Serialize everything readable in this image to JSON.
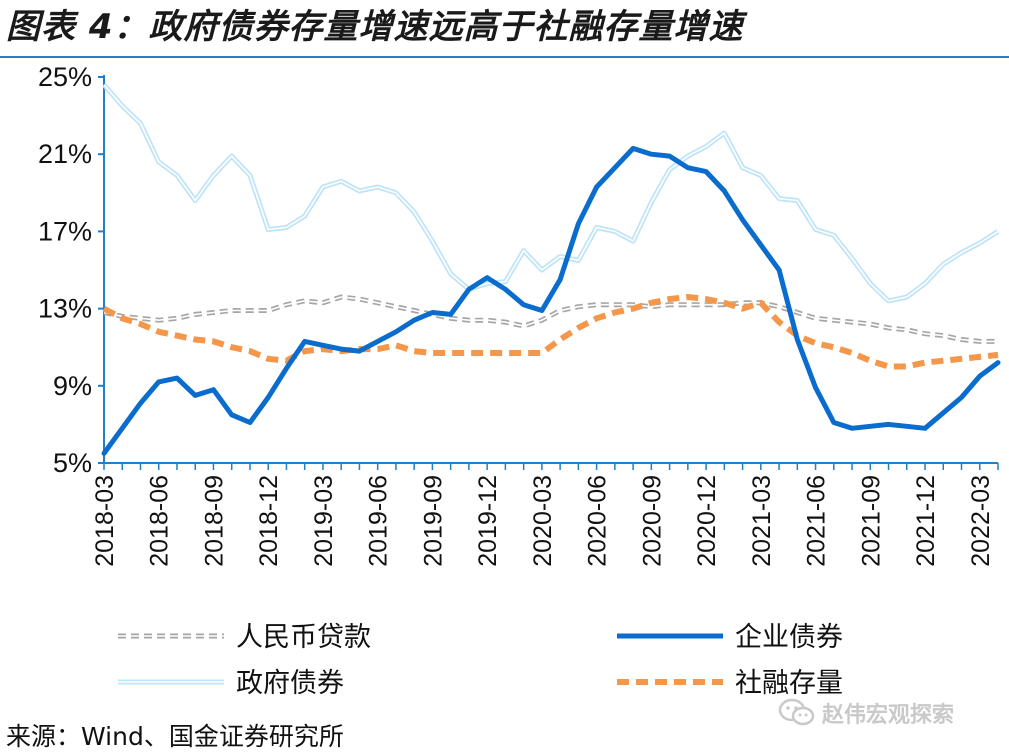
{
  "title": "图表 4：政府债券存量增速远高于社融存量增速",
  "source": "来源：Wind、国金证券研究所",
  "watermark": {
    "text": "赵伟宏观探索",
    "icon": "wechat-icon"
  },
  "colors": {
    "rmb_loans": "#a6a6a6",
    "corporate_bonds": "#0a6ccd",
    "government_bonds": "#bfe3f7",
    "social_financing": "#f4974a",
    "axis": "#1f7fc9",
    "title_rule": "#1f7fc9"
  },
  "chart_data": {
    "type": "line",
    "title": "政府债券存量增速远高于社融存量增速",
    "xlabel": "",
    "ylabel": "",
    "ylim": [
      5,
      25
    ],
    "yticks": [
      5,
      9,
      13,
      17,
      21,
      25
    ],
    "ytick_labels": [
      "5%",
      "9%",
      "13%",
      "17%",
      "21%",
      "25%"
    ],
    "x_tick_labels": [
      "2018-03",
      "2018-06",
      "2018-09",
      "2018-12",
      "2019-03",
      "2019-06",
      "2019-09",
      "2019-12",
      "2020-03",
      "2020-06",
      "2020-09",
      "2020-12",
      "2021-03",
      "2021-06",
      "2021-09",
      "2021-12",
      "2022-03"
    ],
    "x": [
      "2018-03",
      "2018-04",
      "2018-05",
      "2018-06",
      "2018-07",
      "2018-08",
      "2018-09",
      "2018-10",
      "2018-11",
      "2018-12",
      "2019-01",
      "2019-02",
      "2019-03",
      "2019-04",
      "2019-05",
      "2019-06",
      "2019-07",
      "2019-08",
      "2019-09",
      "2019-10",
      "2019-11",
      "2019-12",
      "2020-01",
      "2020-02",
      "2020-03",
      "2020-04",
      "2020-05",
      "2020-06",
      "2020-07",
      "2020-08",
      "2020-09",
      "2020-10",
      "2020-11",
      "2020-12",
      "2021-01",
      "2021-02",
      "2021-03",
      "2021-04",
      "2021-05",
      "2021-06",
      "2021-07",
      "2021-08",
      "2021-09",
      "2021-10",
      "2021-11",
      "2021-12",
      "2022-01",
      "2022-02",
      "2022-03",
      "2022-04"
    ],
    "legend_position": "bottom",
    "series": [
      {
        "name": "人民币贷款",
        "key": "rmb_loans",
        "style": "dashed",
        "width": 4,
        "values": [
          12.8,
          12.6,
          12.5,
          12.4,
          12.5,
          12.7,
          12.8,
          12.9,
          12.9,
          12.9,
          13.2,
          13.4,
          13.3,
          13.6,
          13.5,
          13.3,
          13.1,
          12.9,
          12.7,
          12.5,
          12.4,
          12.4,
          12.3,
          12.1,
          12.4,
          12.9,
          13.1,
          13.2,
          13.2,
          13.2,
          13.1,
          13.2,
          13.2,
          13.2,
          13.2,
          13.3,
          13.3,
          13.1,
          12.8,
          12.5,
          12.4,
          12.3,
          12.2,
          12.0,
          11.9,
          11.7,
          11.6,
          11.4,
          11.3,
          11.3
        ]
      },
      {
        "name": "企业债券",
        "key": "corporate_bonds",
        "style": "solid",
        "width": 5,
        "values": [
          5.5,
          6.8,
          8.1,
          9.2,
          9.4,
          8.5,
          8.8,
          7.5,
          7.1,
          8.4,
          9.9,
          11.3,
          11.1,
          10.9,
          10.8,
          11.3,
          11.8,
          12.4,
          12.8,
          12.7,
          14.0,
          14.6,
          14.0,
          13.2,
          12.9,
          14.5,
          17.4,
          19.3,
          20.3,
          21.3,
          21.0,
          20.9,
          20.3,
          20.1,
          19.1,
          17.6,
          16.3,
          15.0,
          11.4,
          8.9,
          7.1,
          6.8,
          6.9,
          7.0,
          6.9,
          6.8,
          7.6,
          8.4,
          9.5,
          10.2
        ]
      },
      {
        "name": "政府债券",
        "key": "government_bonds",
        "style": "solid",
        "width": 3,
        "values": [
          24.6,
          23.5,
          22.6,
          20.6,
          19.9,
          18.6,
          19.9,
          20.9,
          19.9,
          17.1,
          17.2,
          17.8,
          19.3,
          19.6,
          19.1,
          19.3,
          19.0,
          18.0,
          16.5,
          14.8,
          14.0,
          14.3,
          14.4,
          16.0,
          15.0,
          15.7,
          15.5,
          17.2,
          17.0,
          16.5,
          18.5,
          20.2,
          20.9,
          21.4,
          22.1,
          20.3,
          19.9,
          18.7,
          18.6,
          17.1,
          16.8,
          15.6,
          14.3,
          13.4,
          13.6,
          14.3,
          15.3,
          15.9,
          16.4,
          17.0
        ]
      },
      {
        "name": "社融存量",
        "key": "social_financing",
        "style": "dashed",
        "width": 6,
        "values": [
          13.0,
          12.5,
          12.2,
          11.8,
          11.6,
          11.4,
          11.3,
          11.0,
          10.8,
          10.4,
          10.3,
          10.8,
          10.9,
          10.8,
          10.9,
          10.9,
          11.1,
          10.8,
          10.7,
          10.7,
          10.7,
          10.7,
          10.7,
          10.7,
          10.7,
          11.4,
          12.0,
          12.5,
          12.8,
          13.0,
          13.3,
          13.5,
          13.6,
          13.5,
          13.3,
          13.0,
          13.3,
          12.3,
          11.6,
          11.2,
          11.0,
          10.7,
          10.3,
          10.0,
          10.0,
          10.2,
          10.3,
          10.4,
          10.5,
          10.6
        ]
      }
    ],
    "legend": [
      {
        "label": "人民币贷款",
        "key": "rmb_loans"
      },
      {
        "label": "企业债券",
        "key": "corporate_bonds"
      },
      {
        "label": "政府债券",
        "key": "government_bonds"
      },
      {
        "label": "社融存量",
        "key": "social_financing"
      }
    ]
  }
}
